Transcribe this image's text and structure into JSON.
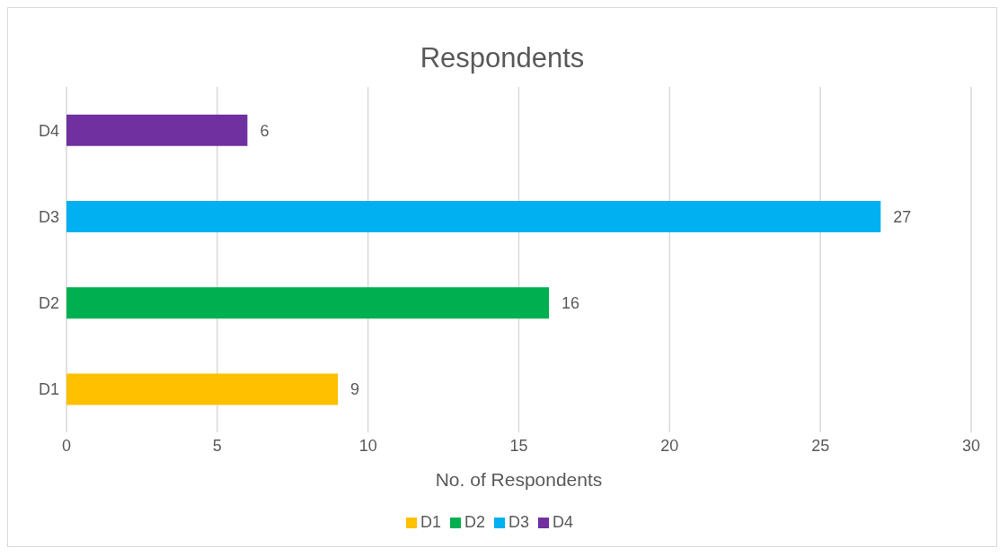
{
  "chart_data": {
    "type": "bar",
    "orientation": "horizontal",
    "stacked": true,
    "title": "Respondents",
    "xlabel": "No. of Respondents",
    "categories": [
      "D4",
      "D3",
      "D2",
      "D1"
    ],
    "series": [
      {
        "name": "D1",
        "color": "#ffc000",
        "values": [
          null,
          null,
          null,
          9
        ]
      },
      {
        "name": "D2",
        "color": "#00b050",
        "values": [
          null,
          null,
          16,
          null
        ]
      },
      {
        "name": "D3",
        "color": "#00b0f0",
        "values": [
          null,
          27,
          null,
          null
        ]
      },
      {
        "name": "D4",
        "color": "#7030a0",
        "values": [
          6,
          null,
          null,
          null
        ]
      }
    ],
    "xlim": [
      0,
      30
    ],
    "xticks": [
      0,
      5,
      10,
      15,
      20,
      25,
      30
    ],
    "grid": "x",
    "legend": "bottom",
    "data_labels": true
  }
}
